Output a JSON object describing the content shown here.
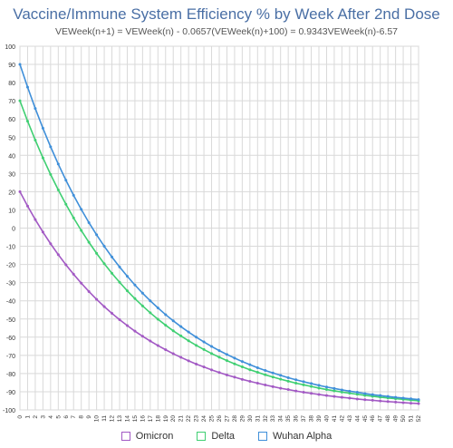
{
  "chart_data": {
    "type": "line",
    "title": "Vaccine/Immune System Efficiency % by Week After 2nd Dose",
    "subtitle": "VEWeek(n+1) = VEWeek(n) - 0.0657(VEWeek(n)+100) = 0.9343VEWeek(n)-6.57",
    "xlabel": "",
    "ylabel": "",
    "x": [
      0,
      1,
      2,
      3,
      4,
      5,
      6,
      7,
      8,
      9,
      10,
      11,
      12,
      13,
      14,
      15,
      16,
      17,
      18,
      19,
      20,
      21,
      22,
      23,
      24,
      25,
      26,
      27,
      28,
      29,
      30,
      31,
      32,
      33,
      34,
      35,
      36,
      37,
      38,
      39,
      40,
      41,
      42,
      43,
      44,
      45,
      46,
      47,
      48,
      49,
      50,
      51,
      52
    ],
    "xlim": [
      0,
      52
    ],
    "ylim": [
      -100,
      100
    ],
    "y_tick_step": 10,
    "grid": true,
    "legend_position": "bottom",
    "series": [
      {
        "name": "Omicron",
        "color": "#a259c4",
        "start": 20,
        "values": [
          20.0,
          12.1,
          4.7,
          -2.2,
          -8.6,
          -14.6,
          -20.2,
          -25.4,
          -30.3,
          -34.9,
          -39.2,
          -43.2,
          -46.9,
          -50.4,
          -53.6,
          -56.7,
          -59.5,
          -62.1,
          -64.6,
          -66.9,
          -69.1,
          -71.1,
          -73.0,
          -74.8,
          -76.4,
          -78.0,
          -79.4,
          -80.8,
          -82.0,
          -83.2,
          -84.3,
          -85.3,
          -86.3,
          -87.2,
          -88.1,
          -88.8,
          -89.6,
          -90.3,
          -90.9,
          -91.5,
          -92.1,
          -92.6,
          -93.1,
          -93.5,
          -94.0,
          -94.4,
          -94.7,
          -95.1,
          -95.4,
          -95.7,
          -96.0,
          -96.3,
          -96.5
        ]
      },
      {
        "name": "Delta",
        "color": "#3fcf72",
        "start": 70,
        "values": [
          70.0,
          58.8,
          48.4,
          38.6,
          29.5,
          21.0,
          13.1,
          5.6,
          -1.3,
          -7.8,
          -13.9,
          -19.6,
          -24.9,
          -29.8,
          -34.5,
          -38.8,
          -42.8,
          -46.6,
          -50.1,
          -53.4,
          -56.5,
          -59.3,
          -62.0,
          -64.5,
          -66.8,
          -69.0,
          -71.0,
          -72.9,
          -74.7,
          -76.3,
          -77.9,
          -79.3,
          -80.7,
          -81.9,
          -83.1,
          -84.2,
          -85.3,
          -86.2,
          -87.1,
          -88.0,
          -88.8,
          -89.5,
          -90.2,
          -90.8,
          -91.4,
          -92.0,
          -92.5,
          -93.0,
          -93.4,
          -93.8,
          -94.2,
          -94.6,
          -95.0
        ]
      },
      {
        "name": "Wuhan Alpha",
        "color": "#3f8fd9",
        "start": 90,
        "values": [
          90.0,
          77.5,
          65.8,
          54.9,
          44.7,
          35.2,
          26.3,
          18.0,
          10.3,
          3.0,
          -3.7,
          -10.0,
          -15.9,
          -21.4,
          -26.5,
          -31.3,
          -35.8,
          -40.0,
          -43.9,
          -47.6,
          -51.0,
          -54.2,
          -57.2,
          -60.0,
          -62.6,
          -65.1,
          -67.4,
          -69.5,
          -71.5,
          -73.4,
          -75.1,
          -76.8,
          -78.3,
          -79.7,
          -81.0,
          -82.3,
          -83.4,
          -84.5,
          -85.5,
          -86.5,
          -87.4,
          -88.2,
          -89.0,
          -89.7,
          -90.3,
          -91.0,
          -91.6,
          -92.1,
          -92.6,
          -93.1,
          -93.5,
          -93.9,
          -94.3
        ]
      }
    ]
  }
}
